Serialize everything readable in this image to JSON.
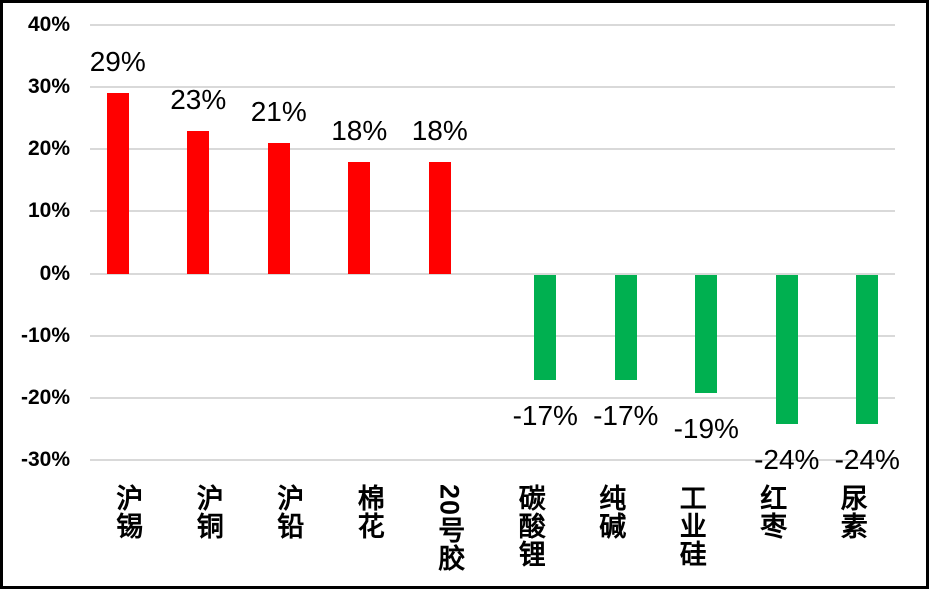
{
  "chart_data": {
    "type": "bar",
    "title": "",
    "xlabel": "",
    "ylabel": "",
    "categories": [
      "沪锡",
      "沪铜",
      "沪铅",
      "棉花",
      "20号胶",
      "碳酸锂",
      "纯碱",
      "工业硅",
      "红枣",
      "尿素"
    ],
    "values": [
      29,
      23,
      21,
      18,
      18,
      -17,
      -17,
      -19,
      -24,
      -24
    ],
    "data_labels": [
      "29%",
      "23%",
      "21%",
      "18%",
      "18%",
      "-17%",
      "-17%",
      "-19%",
      "-24%",
      "-24%"
    ],
    "y_axis": {
      "min": -30,
      "max": 40,
      "ticks": [
        40,
        30,
        20,
        10,
        0,
        -10,
        -20,
        -30
      ],
      "tick_labels": [
        "40%",
        "30%",
        "20%",
        "10%",
        "0%",
        "-10%",
        "-20%",
        "-30%"
      ]
    },
    "grid": true,
    "legend": false,
    "colors": {
      "positive_bar": "#FF0000",
      "negative_bar": "#00B050",
      "gridline": "#D9D9D9",
      "text": "#000000",
      "background": "#FFFFFF",
      "frame_border": "#000000"
    }
  }
}
